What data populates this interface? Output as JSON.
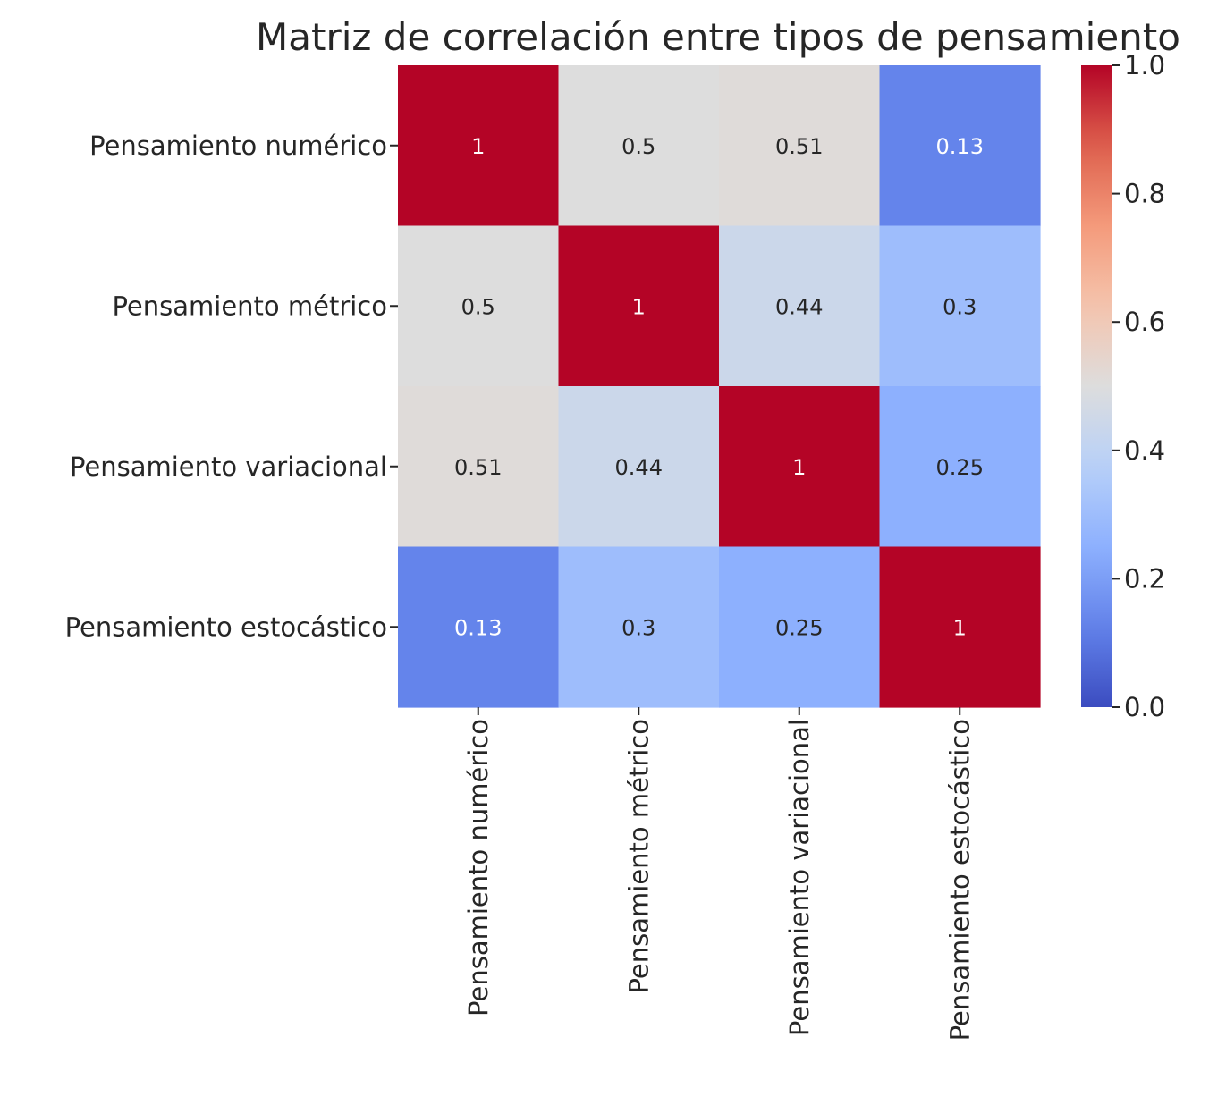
{
  "chart_data": {
    "type": "heatmap",
    "title": "Matriz de correlación entre tipos de pensamiento",
    "row_labels": [
      "Pensamiento numérico",
      "Pensamiento métrico",
      "Pensamiento variacional",
      "Pensamiento estocástico"
    ],
    "col_labels": [
      "Pensamiento numérico",
      "Pensamiento métrico",
      "Pensamiento variacional",
      "Pensamiento estocástico"
    ],
    "values": [
      [
        1,
        0.5,
        0.51,
        0.13
      ],
      [
        0.5,
        1,
        0.44,
        0.3
      ],
      [
        0.51,
        0.44,
        1,
        0.25
      ],
      [
        0.13,
        0.3,
        0.25,
        1
      ]
    ],
    "annotations": [
      [
        "1",
        "0.5",
        "0.51",
        "0.13"
      ],
      [
        "0.5",
        "1",
        "0.44",
        "0.3"
      ],
      [
        "0.51",
        "0.44",
        "1",
        "0.25"
      ],
      [
        "0.13",
        "0.3",
        "0.25",
        "1"
      ]
    ],
    "colormap": "coolwarm",
    "vmin": 0,
    "vmax": 1,
    "colorbar": {
      "ticks": [
        0.0,
        0.2,
        0.4,
        0.6,
        0.8,
        1.0
      ],
      "tick_labels": [
        "0.0",
        "0.2",
        "0.4",
        "0.6",
        "0.8",
        "1.0"
      ],
      "position": "right"
    },
    "xlabel": "",
    "ylabel": ""
  }
}
